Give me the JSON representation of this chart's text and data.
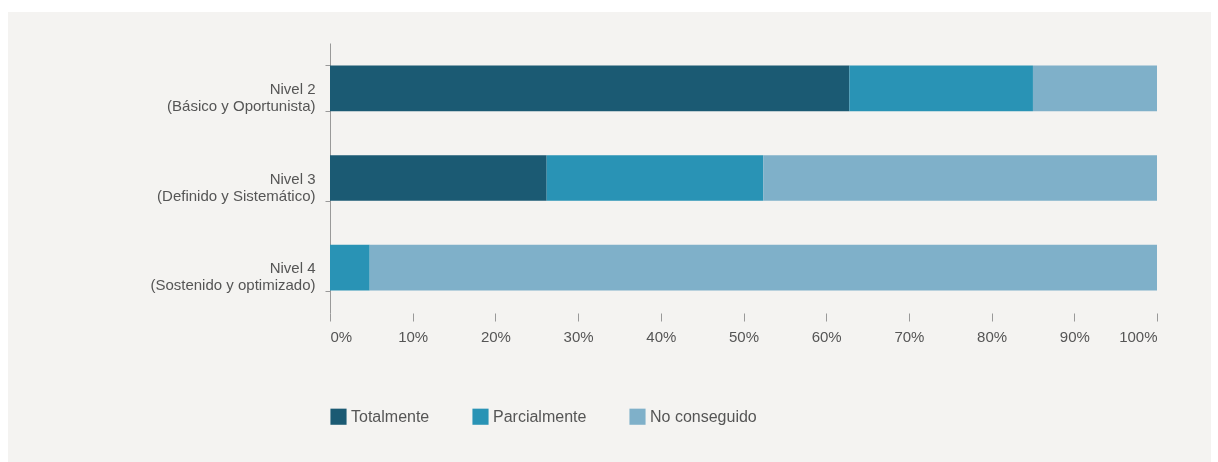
{
  "chart_data": {
    "type": "bar",
    "orientation": "horizontal",
    "stacked": true,
    "categories": [
      "Nivel 2\n(Básico y Oportunista)",
      "Nivel 3\n(Definido y Sistemático)",
      "Nivel 4\n(Sostenido y optimizado)"
    ],
    "series": [
      {
        "name": "Totalmente",
        "color": "#1b5a73",
        "values": [
          62.8,
          26.2,
          0
        ]
      },
      {
        "name": "Parcialmente",
        "color": "#2993b5",
        "values": [
          22.2,
          26.2,
          4.8
        ]
      },
      {
        "name": "No conseguido",
        "color": "#7fb0c9",
        "values": [
          15.0,
          47.6,
          95.2
        ]
      }
    ],
    "xlim": [
      0,
      100
    ],
    "xticks": [
      {
        "value": 0,
        "label": "0%"
      },
      {
        "value": 10,
        "label": "10%"
      },
      {
        "value": 20,
        "label": "20%"
      },
      {
        "value": 30,
        "label": "30%"
      },
      {
        "value": 40,
        "label": "40%"
      },
      {
        "value": 50,
        "label": "50%"
      },
      {
        "value": 60,
        "label": "60%"
      },
      {
        "value": 70,
        "label": "70%"
      },
      {
        "value": 80,
        "label": "80%"
      },
      {
        "value": 90,
        "label": "90%"
      },
      {
        "value": 100,
        "label": "100%"
      }
    ],
    "grid": false,
    "legend": "bottom"
  }
}
